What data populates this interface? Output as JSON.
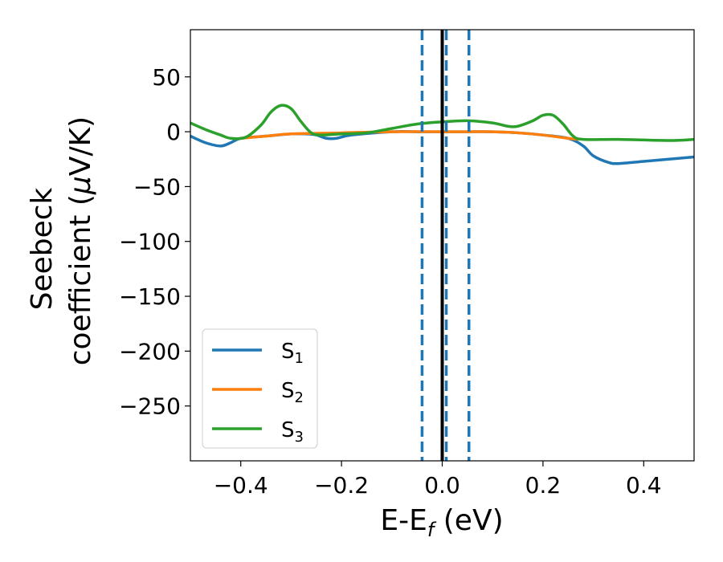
{
  "chart_data": {
    "type": "line",
    "xlabel": "E-E",
    "xlabel_sub": "f",
    "xlabel_unit": " (eV)",
    "ylabel_line1": "Seebeck",
    "ylabel_line2": "coefficient  (",
    "ylabel_mu": "μ",
    "ylabel_unit": "V/K)",
    "xlim": [
      -0.5,
      0.5
    ],
    "ylim": [
      -300,
      93
    ],
    "x_ticks": [
      -0.4,
      -0.2,
      0.0,
      0.2,
      0.4
    ],
    "x_tick_labels": [
      "−0.4",
      "−0.2",
      "0.0",
      "0.2",
      "0.4"
    ],
    "y_ticks": [
      50,
      0,
      -50,
      -100,
      -150,
      -200,
      -250
    ],
    "y_tick_labels": [
      "50",
      "0",
      "−50",
      "−100",
      "−150",
      "−200",
      "−250"
    ],
    "legend_position": "lower-left",
    "series": [
      {
        "name": "S",
        "sub": "1",
        "color": "#1f77b4",
        "points": [
          [
            -0.5,
            -4
          ],
          [
            -0.47,
            -10
          ],
          [
            -0.44,
            -13
          ],
          [
            -0.42,
            -10
          ],
          [
            -0.4,
            -6
          ],
          [
            -0.35,
            -4
          ],
          [
            -0.3,
            -2
          ],
          [
            -0.27,
            -2
          ],
          [
            -0.25,
            -3
          ],
          [
            -0.23,
            -6
          ],
          [
            -0.21,
            -6
          ],
          [
            -0.18,
            -3
          ],
          [
            -0.1,
            0
          ],
          [
            -0.05,
            0
          ],
          [
            0.0,
            0
          ],
          [
            0.05,
            0
          ],
          [
            0.1,
            0
          ],
          [
            0.15,
            -1
          ],
          [
            0.2,
            -3
          ],
          [
            0.25,
            -6
          ],
          [
            0.28,
            -13
          ],
          [
            0.3,
            -22
          ],
          [
            0.33,
            -28
          ],
          [
            0.35,
            -29
          ],
          [
            0.4,
            -27
          ],
          [
            0.45,
            -25
          ],
          [
            0.5,
            -23
          ]
        ]
      },
      {
        "name": "S",
        "sub": "2",
        "color": "#ff7f0e",
        "points": [
          [
            -0.4,
            -6
          ],
          [
            -0.35,
            -4
          ],
          [
            -0.3,
            -2
          ],
          [
            -0.2,
            -1
          ],
          [
            -0.1,
            0
          ],
          [
            0.0,
            0
          ],
          [
            0.05,
            0
          ],
          [
            0.1,
            0
          ],
          [
            0.15,
            -1
          ],
          [
            0.2,
            -3
          ],
          [
            0.25,
            -6
          ],
          [
            0.27,
            -7
          ]
        ]
      },
      {
        "name": "S",
        "sub": "3",
        "color": "#2ca02c",
        "points": [
          [
            -0.5,
            8
          ],
          [
            -0.47,
            2
          ],
          [
            -0.44,
            -3
          ],
          [
            -0.42,
            -6
          ],
          [
            -0.39,
            -5
          ],
          [
            -0.36,
            6
          ],
          [
            -0.34,
            18
          ],
          [
            -0.32,
            24
          ],
          [
            -0.3,
            21
          ],
          [
            -0.28,
            9
          ],
          [
            -0.26,
            -1
          ],
          [
            -0.24,
            -3
          ],
          [
            -0.2,
            -2
          ],
          [
            -0.15,
            -1
          ],
          [
            -0.1,
            3
          ],
          [
            -0.05,
            7
          ],
          [
            0.0,
            9
          ],
          [
            0.05,
            10
          ],
          [
            0.1,
            8
          ],
          [
            0.13,
            5
          ],
          [
            0.15,
            5
          ],
          [
            0.18,
            10
          ],
          [
            0.2,
            15
          ],
          [
            0.22,
            15
          ],
          [
            0.24,
            7
          ],
          [
            0.26,
            -4
          ],
          [
            0.28,
            -7
          ],
          [
            0.35,
            -7
          ],
          [
            0.45,
            -8
          ],
          [
            0.5,
            -7
          ]
        ]
      }
    ],
    "vlines": [
      {
        "x": -0.04,
        "style": "dashed",
        "color": "#1f77b4"
      },
      {
        "x": 0.008,
        "style": "dashed",
        "color": "#1f77b4"
      },
      {
        "x": 0.053,
        "style": "dashed",
        "color": "#1f77b4"
      },
      {
        "x": 0.0,
        "style": "solid",
        "color": "#000000"
      }
    ]
  }
}
